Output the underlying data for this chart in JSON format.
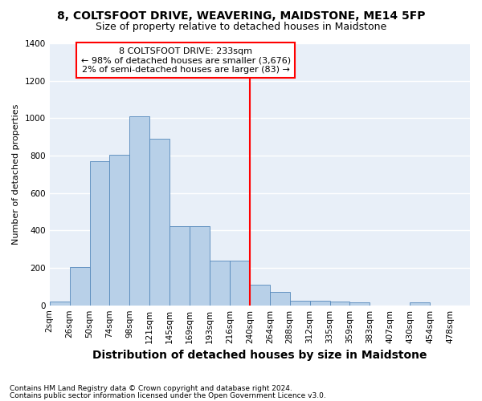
{
  "title": "8, COLTSFOOT DRIVE, WEAVERING, MAIDSTONE, ME14 5FP",
  "subtitle": "Size of property relative to detached houses in Maidstone",
  "xlabel": "Distribution of detached houses by size in Maidstone",
  "ylabel": "Number of detached properties",
  "footnote1": "Contains HM Land Registry data © Crown copyright and database right 2024.",
  "footnote2": "Contains public sector information licensed under the Open Government Licence v3.0.",
  "bar_labels": [
    "2sqm",
    "26sqm",
    "50sqm",
    "74sqm",
    "98sqm",
    "121sqm",
    "145sqm",
    "169sqm",
    "193sqm",
    "216sqm",
    "240sqm",
    "264sqm",
    "288sqm",
    "312sqm",
    "335sqm",
    "359sqm",
    "383sqm",
    "407sqm",
    "430sqm",
    "454sqm",
    "478sqm"
  ],
  "bar_values": [
    20,
    205,
    770,
    805,
    1010,
    890,
    425,
    425,
    240,
    240,
    110,
    70,
    25,
    25,
    20,
    15,
    0,
    0,
    15,
    0,
    0
  ],
  "bar_color": "#b8d0e8",
  "bar_edge_color": "#5588bb",
  "vline_x_index": 10,
  "vline_color": "red",
  "annotation_title": "8 COLTSFOOT DRIVE: 233sqm",
  "annotation_line1": "← 98% of detached houses are smaller (3,676)",
  "annotation_line2": "2% of semi-detached houses are larger (83) →",
  "ylim": [
    0,
    1400
  ],
  "yticks": [
    0,
    200,
    400,
    600,
    800,
    1000,
    1200,
    1400
  ],
  "background_color": "#e8eff8",
  "grid_color": "#ffffff",
  "title_fontsize": 10,
  "subtitle_fontsize": 9,
  "ylabel_fontsize": 8,
  "xlabel_fontsize": 10,
  "tick_fontsize": 7.5,
  "annotation_fontsize": 8,
  "footnote_fontsize": 6.5
}
